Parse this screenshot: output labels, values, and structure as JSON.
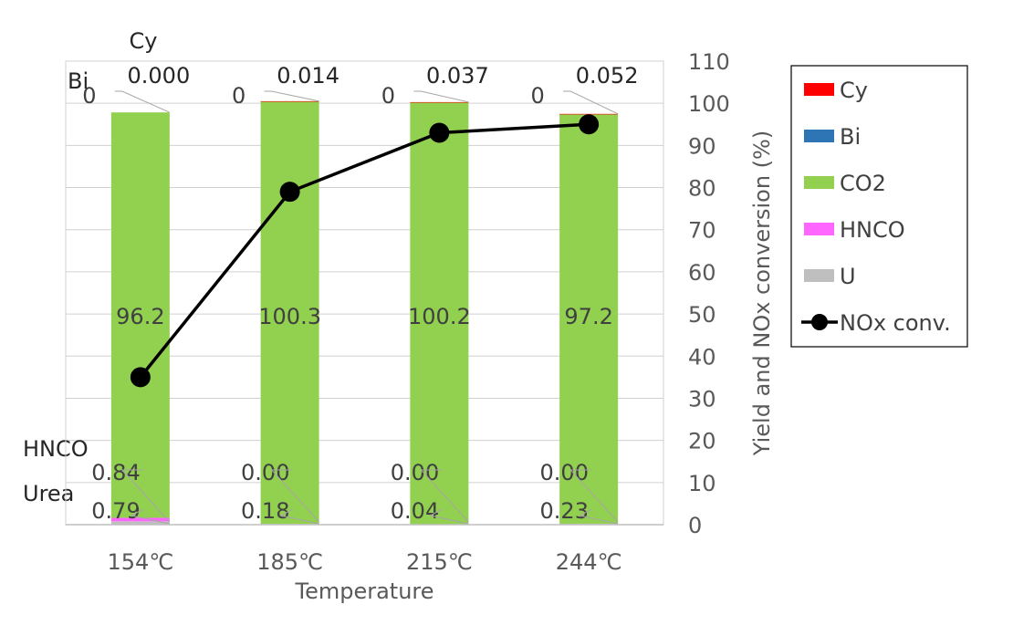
{
  "chart_data": {
    "type": "bar",
    "stacked": true,
    "categories": [
      "154℃",
      "185℃",
      "215℃",
      "244℃"
    ],
    "xlabel": "Temperature",
    "ylabel_right": "Yield and NOx conversion (%)",
    "ylim": [
      0,
      110
    ],
    "yticks": [
      0,
      10,
      20,
      30,
      40,
      50,
      60,
      70,
      80,
      90,
      100,
      110
    ],
    "grid": true,
    "legend_position": "right",
    "series": [
      {
        "name": "U",
        "kind": "bar",
        "color": "#bfbfbf",
        "values": [
          0.79,
          0.18,
          0.04,
          0.23
        ],
        "labels": [
          "0.79",
          "0.18",
          "0.04",
          "0.23"
        ]
      },
      {
        "name": "HNCO",
        "kind": "bar",
        "color": "#ff66ff",
        "values": [
          0.84,
          0.0,
          0.0,
          0.0
        ],
        "labels": [
          "0.84",
          "0.00",
          "0.00",
          "0.00"
        ]
      },
      {
        "name": "CO2",
        "kind": "bar",
        "color": "#92d050",
        "values": [
          96.2,
          100.3,
          100.2,
          97.2
        ],
        "labels": [
          "96.2",
          "100.3",
          "100.2",
          "97.2"
        ]
      },
      {
        "name": "Bi",
        "kind": "bar",
        "color": "#2e75b6",
        "values": [
          0,
          0,
          0,
          0
        ],
        "labels": [
          "0",
          "0",
          "0",
          "0"
        ]
      },
      {
        "name": "Cy",
        "kind": "bar",
        "color": "#ff0000",
        "values": [
          0.0,
          0.014,
          0.037,
          0.052
        ],
        "labels": [
          "0.000",
          "0.014",
          "0.037",
          "0.052"
        ]
      },
      {
        "name": "NOx conv.",
        "kind": "line",
        "color": "#000000",
        "values": [
          35,
          79,
          93,
          95
        ]
      }
    ],
    "side_labels": {
      "cy": "Cy",
      "bi": "Bi",
      "hnco": "HNCO",
      "urea": "Urea"
    }
  }
}
